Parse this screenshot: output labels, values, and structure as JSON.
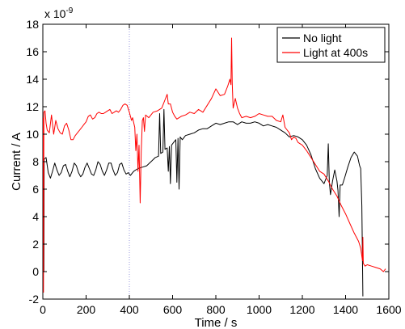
{
  "chart_data": {
    "type": "line",
    "xlabel": "Time / s",
    "ylabel": "Current / A",
    "y_exponent": "x 10",
    "y_exponent_power": "-9",
    "xlim": [
      0,
      1600
    ],
    "ylim": [
      -2,
      18
    ],
    "x_ticks": [
      "0",
      "200",
      "400",
      "600",
      "800",
      "1000",
      "1200",
      "1400",
      "1600"
    ],
    "y_ticks": [
      "-2",
      "0",
      "2",
      "4",
      "6",
      "8",
      "10",
      "12",
      "14",
      "16",
      "18"
    ],
    "grid": false,
    "legend_position": "top-right",
    "marker_line": {
      "x": 400,
      "color": "#9999dd",
      "style": "dotted"
    },
    "series": [
      {
        "name": "No light",
        "color": "#000000",
        "points": [
          [
            5,
            0
          ],
          [
            6,
            8.2
          ],
          [
            15,
            8.3
          ],
          [
            25,
            7.2
          ],
          [
            35,
            6.8
          ],
          [
            45,
            7.3
          ],
          [
            55,
            7.9
          ],
          [
            65,
            7.4
          ],
          [
            75,
            7.0
          ],
          [
            85,
            7.2
          ],
          [
            95,
            7.7
          ],
          [
            105,
            7.8
          ],
          [
            115,
            7.3
          ],
          [
            125,
            6.9
          ],
          [
            135,
            7.3
          ],
          [
            145,
            7.9
          ],
          [
            155,
            7.7
          ],
          [
            165,
            7.2
          ],
          [
            175,
            6.9
          ],
          [
            185,
            7.1
          ],
          [
            195,
            7.6
          ],
          [
            205,
            7.9
          ],
          [
            215,
            7.5
          ],
          [
            225,
            7.1
          ],
          [
            235,
            7.0
          ],
          [
            245,
            7.4
          ],
          [
            255,
            8.0
          ],
          [
            265,
            7.8
          ],
          [
            275,
            7.3
          ],
          [
            285,
            7.0
          ],
          [
            295,
            7.4
          ],
          [
            305,
            7.9
          ],
          [
            315,
            7.9
          ],
          [
            325,
            7.4
          ],
          [
            335,
            7.0
          ],
          [
            345,
            7.2
          ],
          [
            355,
            7.8
          ],
          [
            365,
            7.9
          ],
          [
            375,
            7.4
          ],
          [
            385,
            7.1
          ],
          [
            395,
            7.2
          ],
          [
            405,
            7.0
          ],
          [
            420,
            7.3
          ],
          [
            440,
            7.5
          ],
          [
            460,
            7.6
          ],
          [
            480,
            7.7
          ],
          [
            500,
            8.0
          ],
          [
            520,
            8.3
          ],
          [
            535,
            8.4
          ],
          [
            540,
            11.5
          ],
          [
            545,
            8.6
          ],
          [
            555,
            8.7
          ],
          [
            560,
            11.8
          ],
          [
            565,
            8.9
          ],
          [
            575,
            9.0
          ],
          [
            580,
            7.3
          ],
          [
            585,
            9.1
          ],
          [
            590,
            6.4
          ],
          [
            595,
            9.2
          ],
          [
            605,
            9.4
          ],
          [
            615,
            9.6
          ],
          [
            620,
            6.5
          ],
          [
            625,
            9.7
          ],
          [
            630,
            6.0
          ],
          [
            635,
            9.8
          ],
          [
            645,
            9.6
          ],
          [
            660,
            9.9
          ],
          [
            680,
            10.0
          ],
          [
            700,
            10.1
          ],
          [
            720,
            10.3
          ],
          [
            740,
            10.4
          ],
          [
            760,
            10.4
          ],
          [
            780,
            10.6
          ],
          [
            800,
            10.8
          ],
          [
            820,
            10.7
          ],
          [
            840,
            10.8
          ],
          [
            860,
            10.9
          ],
          [
            880,
            10.9
          ],
          [
            900,
            10.7
          ],
          [
            920,
            10.9
          ],
          [
            940,
            10.8
          ],
          [
            960,
            10.8
          ],
          [
            980,
            10.9
          ],
          [
            1000,
            10.8
          ],
          [
            1020,
            10.6
          ],
          [
            1040,
            10.7
          ],
          [
            1060,
            10.6
          ],
          [
            1080,
            10.5
          ],
          [
            1100,
            10.3
          ],
          [
            1120,
            10.1
          ],
          [
            1140,
            9.8
          ],
          [
            1160,
            9.9
          ],
          [
            1180,
            9.8
          ],
          [
            1200,
            9.6
          ],
          [
            1220,
            9.2
          ],
          [
            1240,
            8.5
          ],
          [
            1260,
            7.5
          ],
          [
            1280,
            6.8
          ],
          [
            1300,
            6.4
          ],
          [
            1315,
            7.0
          ],
          [
            1320,
            9.3
          ],
          [
            1325,
            6.5
          ],
          [
            1330,
            5.6
          ],
          [
            1340,
            6.6
          ],
          [
            1350,
            7.4
          ],
          [
            1360,
            6.6
          ],
          [
            1365,
            5.9
          ],
          [
            1370,
            4.0
          ],
          [
            1375,
            6.3
          ],
          [
            1385,
            6.3
          ],
          [
            1395,
            6.8
          ],
          [
            1410,
            7.6
          ],
          [
            1425,
            8.3
          ],
          [
            1440,
            8.7
          ],
          [
            1455,
            8.4
          ],
          [
            1465,
            7.7
          ],
          [
            1470,
            7.5
          ],
          [
            1475,
            4.8
          ],
          [
            1478,
            0.8
          ],
          [
            1480,
            -1.8
          ]
        ]
      },
      {
        "name": "Light at 400s",
        "color": "#ff0000",
        "points": [
          [
            2,
            11.2
          ],
          [
            3,
            -1.5
          ],
          [
            5,
            11.6
          ],
          [
            10,
            11.7
          ],
          [
            15,
            10.8
          ],
          [
            20,
            10.3
          ],
          [
            30,
            10.1
          ],
          [
            40,
            11.4
          ],
          [
            50,
            10.0
          ],
          [
            60,
            11.0
          ],
          [
            70,
            10.4
          ],
          [
            80,
            10.1
          ],
          [
            90,
            10.0
          ],
          [
            100,
            10.6
          ],
          [
            110,
            10.8
          ],
          [
            120,
            10.3
          ],
          [
            130,
            9.6
          ],
          [
            140,
            9.6
          ],
          [
            150,
            9.9
          ],
          [
            160,
            10.1
          ],
          [
            170,
            10.3
          ],
          [
            180,
            10.5
          ],
          [
            190,
            10.7
          ],
          [
            200,
            10.9
          ],
          [
            210,
            11.3
          ],
          [
            220,
            11.4
          ],
          [
            230,
            11.1
          ],
          [
            240,
            11.2
          ],
          [
            250,
            11.5
          ],
          [
            260,
            11.6
          ],
          [
            270,
            11.5
          ],
          [
            280,
            11.5
          ],
          [
            290,
            11.6
          ],
          [
            300,
            11.7
          ],
          [
            310,
            11.8
          ],
          [
            320,
            11.5
          ],
          [
            330,
            11.6
          ],
          [
            340,
            11.7
          ],
          [
            350,
            11.6
          ],
          [
            360,
            11.8
          ],
          [
            370,
            12.1
          ],
          [
            380,
            12.2
          ],
          [
            390,
            12.1
          ],
          [
            400,
            11.6
          ],
          [
            410,
            11.0
          ],
          [
            415,
            11.2
          ],
          [
            425,
            10.5
          ],
          [
            430,
            8.8
          ],
          [
            435,
            10.0
          ],
          [
            440,
            7.3
          ],
          [
            445,
            9.2
          ],
          [
            450,
            5.0
          ],
          [
            455,
            8.7
          ],
          [
            460,
            11.0
          ],
          [
            465,
            11.2
          ],
          [
            470,
            10.2
          ],
          [
            475,
            11.4
          ],
          [
            490,
            11.2
          ],
          [
            510,
            11.6
          ],
          [
            530,
            11.7
          ],
          [
            550,
            11.9
          ],
          [
            565,
            12.5
          ],
          [
            575,
            12.9
          ],
          [
            580,
            12.2
          ],
          [
            590,
            12.2
          ],
          [
            600,
            11.6
          ],
          [
            610,
            11.3
          ],
          [
            620,
            11.1
          ],
          [
            640,
            11.3
          ],
          [
            660,
            11.4
          ],
          [
            680,
            11.6
          ],
          [
            700,
            11.5
          ],
          [
            720,
            11.8
          ],
          [
            740,
            11.6
          ],
          [
            760,
            12.1
          ],
          [
            780,
            12.6
          ],
          [
            800,
            13.3
          ],
          [
            820,
            12.8
          ],
          [
            840,
            12.9
          ],
          [
            855,
            13.5
          ],
          [
            865,
            14.0
          ],
          [
            870,
            13.6
          ],
          [
            873,
            17.0
          ],
          [
            876,
            13.7
          ],
          [
            880,
            11.9
          ],
          [
            890,
            12.6
          ],
          [
            900,
            11.9
          ],
          [
            910,
            11.5
          ],
          [
            920,
            11.2
          ],
          [
            940,
            11.3
          ],
          [
            960,
            11.2
          ],
          [
            980,
            11.3
          ],
          [
            1000,
            11.5
          ],
          [
            1020,
            11.4
          ],
          [
            1040,
            11.3
          ],
          [
            1060,
            11.3
          ],
          [
            1080,
            11.0
          ],
          [
            1100,
            10.9
          ],
          [
            1110,
            11.4
          ],
          [
            1120,
            10.5
          ],
          [
            1140,
            10.1
          ],
          [
            1150,
            9.6
          ],
          [
            1160,
            9.8
          ],
          [
            1170,
            9.7
          ],
          [
            1180,
            9.4
          ],
          [
            1200,
            9.2
          ],
          [
            1220,
            8.8
          ],
          [
            1240,
            8.3
          ],
          [
            1260,
            7.8
          ],
          [
            1280,
            7.3
          ],
          [
            1300,
            7.1
          ],
          [
            1320,
            6.6
          ],
          [
            1340,
            6.0
          ],
          [
            1360,
            5.5
          ],
          [
            1380,
            4.8
          ],
          [
            1400,
            4.2
          ],
          [
            1420,
            3.5
          ],
          [
            1440,
            2.8
          ],
          [
            1460,
            2.2
          ],
          [
            1470,
            1.7
          ],
          [
            1478,
            0.8
          ],
          [
            1480,
            2.5
          ],
          [
            1482,
            0.6
          ],
          [
            1490,
            0.4
          ],
          [
            1500,
            0.5
          ],
          [
            1520,
            0.4
          ],
          [
            1540,
            0.3
          ],
          [
            1560,
            0.2
          ],
          [
            1575,
            0.0
          ],
          [
            1585,
            0.2
          ]
        ]
      }
    ]
  }
}
